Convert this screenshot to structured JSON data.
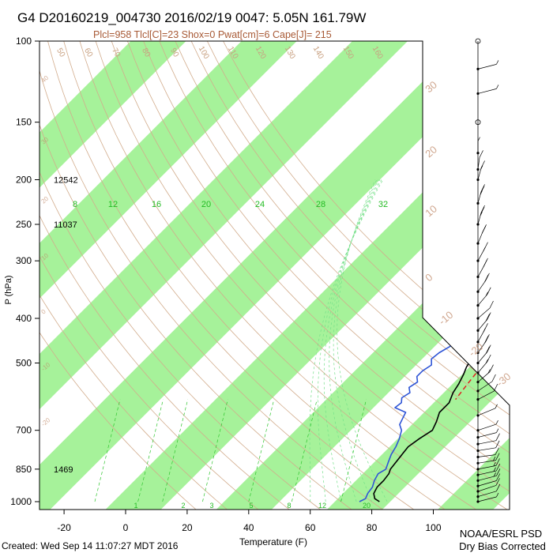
{
  "header": {
    "title": "G4 D20160219_004730 2016/02/19 0047:  5.05N 161.79W",
    "subtitle": "Plcl=958 Tlcl[C]=23 Shox=0 Pwat[cm]=6 Cape[J]= 215"
  },
  "footer": {
    "created": "Created: Wed Sep 14 11:07:27 MDT 2016",
    "org": "NOAA/ESRL PSD",
    "note": "Dry Bias Corrected"
  },
  "colors": {
    "band_green": "#a6f29a",
    "temperature": "#000000",
    "dewpoint": "#2f55d6",
    "parcel": "#e02020",
    "dry_adiabat": "#d2ac8c",
    "moist_adiabat": "#76e08a",
    "mixing_ratio": "#2ec52e",
    "isotherm_c": "#c08a6a"
  },
  "chart_data": {
    "type": "skew-t",
    "xlabel": "Temperature (F)",
    "ylabel": "P (hPa)",
    "xlim": [
      -30,
      120
    ],
    "ylim": [
      1000,
      100
    ],
    "y_scale": "log",
    "x_ticks": [
      -20,
      0,
      20,
      40,
      60,
      80,
      100
    ],
    "y_ticks": [
      100,
      150,
      200,
      250,
      300,
      400,
      500,
      700,
      850,
      1000
    ],
    "height_labels": [
      {
        "p": 200,
        "text": "12542"
      },
      {
        "p": 250,
        "text": "11037"
      },
      {
        "p": 850,
        "text": "1469"
      }
    ],
    "mixing_ratio_labels": [
      "8",
      "12",
      "16",
      "20",
      "24",
      "28",
      "32"
    ],
    "mixing_ratio_bottom_labels": [
      "1",
      "2",
      "3",
      "5",
      "8",
      "12",
      "20"
    ],
    "dry_adiabat_labels": [
      "50",
      "60",
      "70",
      "80",
      "90",
      "100",
      "110",
      "120",
      "130",
      "140",
      "150",
      "160"
    ],
    "isotherm_c_labels_right": [
      "30",
      "20",
      "10",
      "0",
      "-10",
      "-20",
      "-30"
    ],
    "isotherm_c_labels_left": [
      "40",
      "30",
      "20",
      "10",
      "0",
      "-10",
      "-20"
    ],
    "series": [
      {
        "name": "Temperature",
        "points": [
          [
            82.5,
            1000
          ],
          [
            80,
            985
          ],
          [
            78,
            960
          ],
          [
            77,
            930
          ],
          [
            77,
            900
          ],
          [
            76.5,
            870
          ],
          [
            75.5,
            850
          ],
          [
            75,
            820
          ],
          [
            74.5,
            790
          ],
          [
            74,
            760
          ],
          [
            75,
            730
          ],
          [
            76.5,
            700
          ],
          [
            75,
            670
          ],
          [
            73,
            640
          ],
          [
            73,
            610
          ],
          [
            71,
            580
          ],
          [
            70,
            555
          ],
          [
            68.5,
            530
          ],
          [
            67,
            510
          ],
          [
            66,
            490
          ],
          [
            66,
            470
          ],
          [
            65,
            450
          ],
          [
            65.5,
            430
          ],
          [
            65,
            410
          ],
          [
            63,
            390
          ],
          [
            62,
            370
          ],
          [
            61,
            350
          ],
          [
            60.5,
            330
          ],
          [
            61,
            310
          ],
          [
            58,
            295
          ],
          [
            53,
            275
          ],
          [
            49,
            255
          ],
          [
            45,
            238
          ],
          [
            41,
            220
          ],
          [
            38,
            205
          ],
          [
            36,
            190
          ],
          [
            34,
            177
          ]
        ]
      },
      {
        "name": "Dewpoint",
        "points": [
          [
            76,
            1000
          ],
          [
            77,
            985
          ],
          [
            76,
            960
          ],
          [
            75.5,
            930
          ],
          [
            74,
            900
          ],
          [
            73,
            870
          ],
          [
            74,
            850
          ],
          [
            72.5,
            820
          ],
          [
            71,
            790
          ],
          [
            70,
            760
          ],
          [
            68.5,
            730
          ],
          [
            66.5,
            700
          ],
          [
            64,
            680
          ],
          [
            63,
            660
          ],
          [
            62,
            640
          ],
          [
            57,
            625
          ],
          [
            57.5,
            610
          ],
          [
            56,
            595
          ],
          [
            57,
            580
          ],
          [
            55,
            565
          ],
          [
            56,
            550
          ],
          [
            54,
            535
          ],
          [
            54,
            520
          ],
          [
            55,
            505
          ],
          [
            53,
            490
          ],
          [
            53.5,
            475
          ],
          [
            55,
            460
          ],
          [
            54,
            445
          ],
          [
            52.5,
            430
          ],
          [
            55,
            415
          ],
          [
            56,
            400
          ],
          [
            54,
            385
          ],
          [
            53,
            370
          ],
          [
            52,
            355
          ],
          [
            52,
            340
          ],
          [
            51,
            325
          ],
          [
            48,
            305
          ],
          [
            47,
            290
          ],
          [
            46,
            275
          ],
          [
            43,
            260
          ],
          [
            41,
            245
          ],
          [
            38.5,
            230
          ],
          [
            35,
            215
          ],
          [
            31,
            205
          ],
          [
            28,
            198
          ]
        ]
      },
      {
        "name": "Parcel",
        "points": [
          [
            61,
            340
          ],
          [
            64,
            370
          ],
          [
            66.5,
            400
          ],
          [
            68.5,
            430
          ],
          [
            70,
            460
          ],
          [
            71,
            490
          ],
          [
            72,
            520
          ],
          [
            73,
            560
          ],
          [
            74,
            600
          ]
        ]
      }
    ],
    "wind_barbs": [
      {
        "p": 1000,
        "speed_kt": 5,
        "dir": 90
      },
      {
        "p": 975,
        "speed_kt": 10,
        "dir": 95
      },
      {
        "p": 950,
        "speed_kt": 10,
        "dir": 100
      },
      {
        "p": 925,
        "speed_kt": 10,
        "dir": 95
      },
      {
        "p": 900,
        "speed_kt": 15,
        "dir": 90
      },
      {
        "p": 875,
        "speed_kt": 15,
        "dir": 85
      },
      {
        "p": 850,
        "speed_kt": 15,
        "dir": 80
      },
      {
        "p": 825,
        "speed_kt": 15,
        "dir": 75
      },
      {
        "p": 800,
        "speed_kt": 10,
        "dir": 70
      },
      {
        "p": 775,
        "speed_kt": 10,
        "dir": 75
      },
      {
        "p": 750,
        "speed_kt": 10,
        "dir": 80
      },
      {
        "p": 725,
        "speed_kt": 5,
        "dir": 90
      },
      {
        "p": 700,
        "speed_kt": 5,
        "dir": 100
      },
      {
        "p": 650,
        "speed_kt": 5,
        "dir": 110
      },
      {
        "p": 600,
        "speed_kt": 10,
        "dir": 120
      },
      {
        "p": 575,
        "speed_kt": 10,
        "dir": 130
      },
      {
        "p": 550,
        "speed_kt": 15,
        "dir": 140
      },
      {
        "p": 525,
        "speed_kt": 15,
        "dir": 150
      },
      {
        "p": 500,
        "speed_kt": 20,
        "dir": 150
      },
      {
        "p": 475,
        "speed_kt": 20,
        "dir": 155
      },
      {
        "p": 450,
        "speed_kt": 15,
        "dir": 160
      },
      {
        "p": 425,
        "speed_kt": 20,
        "dir": 150
      },
      {
        "p": 400,
        "speed_kt": 10,
        "dir": 140
      },
      {
        "p": 375,
        "speed_kt": 15,
        "dir": 150
      },
      {
        "p": 350,
        "speed_kt": 20,
        "dir": 155
      },
      {
        "p": 325,
        "speed_kt": 20,
        "dir": 160
      },
      {
        "p": 300,
        "speed_kt": 15,
        "dir": 160
      },
      {
        "p": 275,
        "speed_kt": 20,
        "dir": 165
      },
      {
        "p": 250,
        "speed_kt": 25,
        "dir": 170
      },
      {
        "p": 225,
        "speed_kt": 25,
        "dir": 170
      },
      {
        "p": 200,
        "speed_kt": 15,
        "dir": 170
      },
      {
        "p": 190,
        "speed_kt": 10,
        "dir": 175
      },
      {
        "p": 175,
        "speed_kt": 5,
        "dir": 180
      },
      {
        "p": 150,
        "speed_kt": 0,
        "dir": 0
      },
      {
        "p": 130,
        "speed_kt": 5,
        "dir": 90
      },
      {
        "p": 115,
        "speed_kt": 5,
        "dir": 90
      },
      {
        "p": 100,
        "speed_kt": 0,
        "dir": 0
      }
    ]
  }
}
